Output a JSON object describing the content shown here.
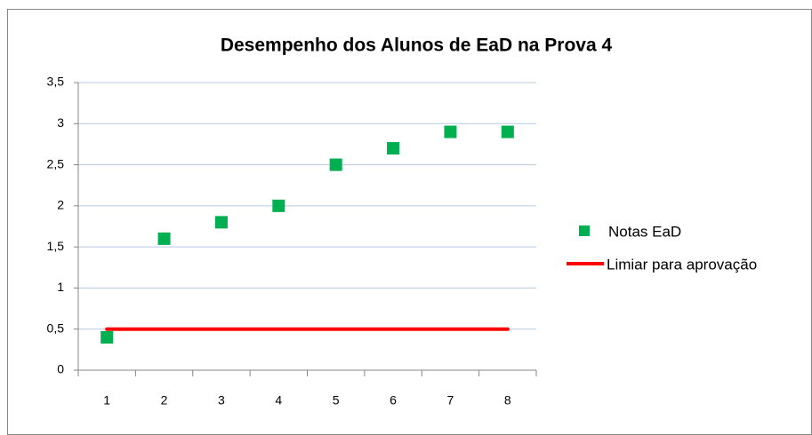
{
  "chart_data": {
    "type": "scatter",
    "title": "Desempenho dos Alunos de EaD na Prova 4",
    "categories": [
      "1",
      "2",
      "3",
      "4",
      "5",
      "6",
      "7",
      "8"
    ],
    "series": [
      {
        "name": "Notas EaD",
        "color": "#00b050",
        "marker": "square",
        "values": [
          0.4,
          1.6,
          1.8,
          2,
          2.5,
          2.7,
          2.9,
          2.9
        ]
      },
      {
        "name": "Limiar para aprovação",
        "color": "#ff0000",
        "marker": "line",
        "values": [
          0.5,
          0.5,
          0.5,
          0.5,
          0.5,
          0.5,
          0.5,
          0.5
        ]
      }
    ],
    "ylim": [
      0,
      3.5
    ],
    "yticks": [
      0,
      {
        "value": 0.5,
        "label": "0,5"
      },
      1,
      {
        "value": 1.5,
        "label": "1,5"
      },
      2,
      {
        "value": 2.5,
        "label": "2,5"
      },
      3,
      {
        "value": 3.5,
        "label": "3,5"
      }
    ],
    "grid": true,
    "legend": "right"
  }
}
